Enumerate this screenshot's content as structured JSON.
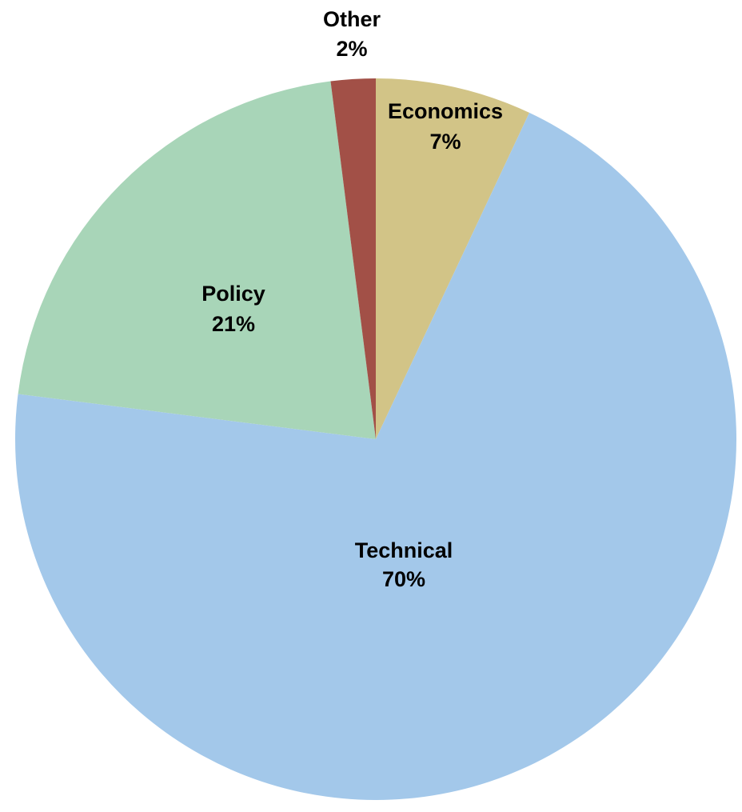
{
  "chart_data": {
    "type": "pie",
    "title": "",
    "start_angle_deg": 0,
    "direction": "clockwise",
    "slices": [
      {
        "name": "Economics",
        "value": 7,
        "percent_label": "7%",
        "color": "#D2C487"
      },
      {
        "name": "Technical",
        "value": 70,
        "percent_label": "70%",
        "color": "#A3C8EA"
      },
      {
        "name": "Policy",
        "value": 21,
        "percent_label": "21%",
        "color": "#A8D5B8"
      },
      {
        "name": "Other",
        "value": 2,
        "percent_label": "2%",
        "color": "#A25047"
      }
    ]
  }
}
